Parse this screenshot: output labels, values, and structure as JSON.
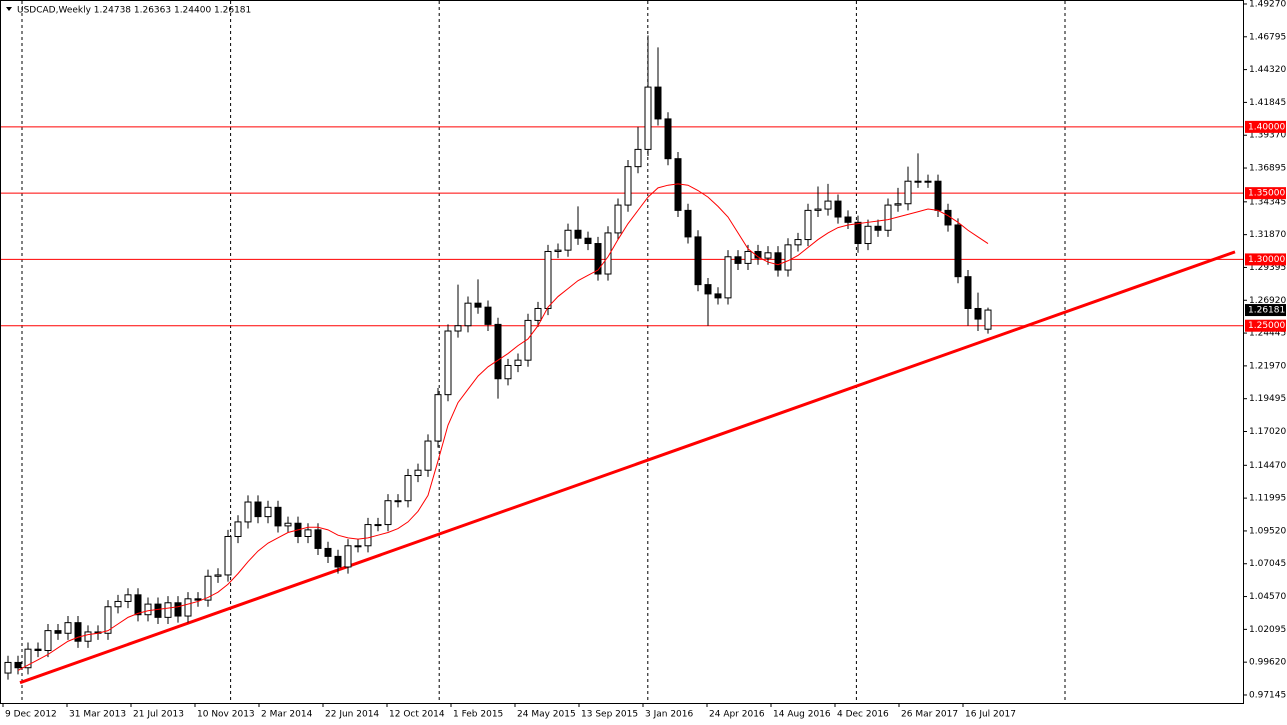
{
  "chart_data": {
    "type": "candlestick",
    "title": "USDCAD,Weekly  1.24738 1.26363 1.24400 1.26181",
    "up_color": "#ffffff",
    "down_color": "#000000",
    "outline_color": "#000000",
    "grid": false,
    "ylim": [
      0.9654,
      1.4957
    ],
    "yticks": [
      {
        "value": 1.4927,
        "label": "1.49270"
      },
      {
        "value": 1.46795,
        "label": "1.46795"
      },
      {
        "value": 1.4432,
        "label": "1.44320"
      },
      {
        "value": 1.41845,
        "label": "1.41845"
      },
      {
        "value": 1.3937,
        "label": "1.39370"
      },
      {
        "value": 1.36895,
        "label": "1.36895"
      },
      {
        "value": 1.34345,
        "label": "1.34345"
      },
      {
        "value": 1.3187,
        "label": "1.31870"
      },
      {
        "value": 1.29395,
        "label": "1.29395"
      },
      {
        "value": 1.2692,
        "label": "1.26920"
      },
      {
        "value": 1.24445,
        "label": "1.24445"
      },
      {
        "value": 1.2197,
        "label": "1.21970"
      },
      {
        "value": 1.19495,
        "label": "1.19495"
      },
      {
        "value": 1.1702,
        "label": "1.17020"
      },
      {
        "value": 1.1447,
        "label": "1.14470"
      },
      {
        "value": 1.11995,
        "label": "1.11995"
      },
      {
        "value": 1.0952,
        "label": "1.09520"
      },
      {
        "value": 1.07045,
        "label": "1.07045"
      },
      {
        "value": 1.0457,
        "label": "1.04570"
      },
      {
        "value": 1.02095,
        "label": "1.02095"
      },
      {
        "value": 0.9962,
        "label": "0.99620"
      },
      {
        "value": 0.97145,
        "label": "0.97145"
      }
    ],
    "x_labels": [
      "9 Dec 2012",
      "31 Mar 2013",
      "21 Jul 2013",
      "10 Nov 2013",
      "2 Mar 2014",
      "22 Jun 2014",
      "12 Oct 2014",
      "1 Feb 2015",
      "24 May 2015",
      "13 Sep 2015",
      "3 Jan 2016",
      "24 Apr 2016",
      "14 Aug 2016",
      "4 Dec 2016",
      "26 Mar 2017",
      "16 Jul 2017"
    ],
    "open": [
      0.988,
      0.996,
      0.992,
      1.006,
      1.005,
      1.02,
      1.018,
      1.026,
      1.012,
      1.019,
      1.018,
      1.038,
      1.042,
      1.047,
      1.032,
      1.04,
      1.03,
      1.041,
      1.031,
      1.044,
      1.043,
      1.061,
      1.062,
      1.091,
      1.102,
      1.117,
      1.106,
      1.113,
      1.099,
      1.101,
      1.091,
      1.096,
      1.082,
      1.076,
      1.068,
      1.084,
      1.084,
      1.1,
      1.1,
      1.118,
      1.118,
      1.137,
      1.141,
      1.163,
      1.198,
      1.246,
      1.25,
      1.267,
      1.264,
      1.251,
      1.21,
      1.22,
      1.224,
      1.254,
      1.263,
      1.306,
      1.307,
      1.322,
      1.316,
      1.312,
      1.289,
      1.32,
      1.341,
      1.37,
      1.383,
      1.43,
      1.406,
      1.376,
      1.337,
      1.317,
      1.281,
      1.274,
      1.271,
      1.302,
      1.297,
      1.306,
      1.301,
      1.305,
      1.292,
      1.311,
      1.315,
      1.337,
      1.338,
      1.344,
      1.332,
      1.328,
      1.312,
      1.325,
      1.322,
      1.341,
      1.342,
      1.359,
      1.359,
      1.359,
      1.337,
      1.326,
      1.287,
      1.263,
      1.24738
    ],
    "high": [
      1.001,
      1.001,
      1.011,
      1.011,
      1.025,
      1.025,
      1.031,
      1.031,
      1.024,
      1.024,
      1.043,
      1.047,
      1.052,
      1.052,
      1.045,
      1.045,
      1.046,
      1.046,
      1.049,
      1.049,
      1.066,
      1.067,
      1.096,
      1.107,
      1.122,
      1.122,
      1.118,
      1.118,
      1.106,
      1.106,
      1.101,
      1.101,
      1.087,
      1.081,
      1.089,
      1.089,
      1.105,
      1.105,
      1.123,
      1.123,
      1.142,
      1.146,
      1.168,
      1.203,
      1.251,
      1.281,
      1.272,
      1.285,
      1.269,
      1.256,
      1.225,
      1.229,
      1.259,
      1.268,
      1.311,
      1.312,
      1.327,
      1.34,
      1.321,
      1.317,
      1.325,
      1.346,
      1.375,
      1.4,
      1.469,
      1.46,
      1.411,
      1.381,
      1.342,
      1.322,
      1.286,
      1.279,
      1.307,
      1.307,
      1.311,
      1.311,
      1.31,
      1.31,
      1.316,
      1.32,
      1.342,
      1.355,
      1.357,
      1.349,
      1.337,
      1.333,
      1.33,
      1.33,
      1.346,
      1.354,
      1.37,
      1.38,
      1.364,
      1.364,
      1.342,
      1.331,
      1.292,
      1.275,
      1.26363
    ],
    "low": [
      0.983,
      0.987,
      0.987,
      1.0,
      1.0,
      1.013,
      1.013,
      1.007,
      1.007,
      1.013,
      1.013,
      1.033,
      1.037,
      1.027,
      1.027,
      1.025,
      1.025,
      1.026,
      1.026,
      1.038,
      1.038,
      1.056,
      1.057,
      1.086,
      1.097,
      1.101,
      1.101,
      1.094,
      1.094,
      1.086,
      1.086,
      1.077,
      1.071,
      1.063,
      1.063,
      1.079,
      1.079,
      1.095,
      1.095,
      1.113,
      1.113,
      1.132,
      1.136,
      1.158,
      1.193,
      1.241,
      1.245,
      1.259,
      1.246,
      1.195,
      1.205,
      1.215,
      1.219,
      1.249,
      1.258,
      1.301,
      1.302,
      1.311,
      1.307,
      1.284,
      1.284,
      1.315,
      1.336,
      1.365,
      1.378,
      1.401,
      1.371,
      1.332,
      1.312,
      1.276,
      1.25,
      1.266,
      1.266,
      1.292,
      1.292,
      1.296,
      1.296,
      1.287,
      1.287,
      1.306,
      1.31,
      1.332,
      1.333,
      1.327,
      1.323,
      1.305,
      1.307,
      1.317,
      1.317,
      1.336,
      1.337,
      1.354,
      1.354,
      1.332,
      1.321,
      1.282,
      1.25,
      1.246,
      1.244
    ],
    "close": [
      0.996,
      0.992,
      1.006,
      1.005,
      1.02,
      1.018,
      1.026,
      1.012,
      1.019,
      1.018,
      1.038,
      1.042,
      1.047,
      1.032,
      1.04,
      1.03,
      1.041,
      1.031,
      1.044,
      1.043,
      1.061,
      1.062,
      1.091,
      1.102,
      1.117,
      1.106,
      1.113,
      1.099,
      1.101,
      1.091,
      1.096,
      1.082,
      1.076,
      1.068,
      1.084,
      1.084,
      1.1,
      1.1,
      1.118,
      1.118,
      1.137,
      1.141,
      1.163,
      1.198,
      1.246,
      1.25,
      1.267,
      1.264,
      1.251,
      1.21,
      1.22,
      1.224,
      1.254,
      1.263,
      1.306,
      1.307,
      1.322,
      1.316,
      1.312,
      1.289,
      1.32,
      1.341,
      1.37,
      1.383,
      1.43,
      1.406,
      1.376,
      1.337,
      1.317,
      1.281,
      1.274,
      1.271,
      1.302,
      1.297,
      1.306,
      1.301,
      1.305,
      1.292,
      1.311,
      1.315,
      1.337,
      1.338,
      1.344,
      1.332,
      1.328,
      1.312,
      1.325,
      1.322,
      1.341,
      1.342,
      1.359,
      1.359,
      1.359,
      1.337,
      1.326,
      1.287,
      1.263,
      1.255,
      1.26181
    ],
    "moving_average": {
      "color": "#ff0000",
      "values": [
        null,
        0.99,
        0.994,
        0.998,
        1.002,
        1.007,
        1.012,
        1.015,
        1.017,
        1.018,
        1.02,
        1.025,
        1.03,
        1.033,
        1.035,
        1.036,
        1.037,
        1.038,
        1.04,
        1.042,
        1.045,
        1.049,
        1.055,
        1.063,
        1.072,
        1.08,
        1.086,
        1.09,
        1.094,
        1.096,
        1.098,
        1.098,
        1.096,
        1.092,
        1.09,
        1.089,
        1.09,
        1.092,
        1.094,
        1.097,
        1.102,
        1.11,
        1.122,
        1.148,
        1.175,
        1.192,
        1.202,
        1.212,
        1.219,
        1.224,
        1.229,
        1.235,
        1.24,
        1.25,
        1.264,
        1.272,
        1.278,
        1.284,
        1.288,
        1.292,
        1.302,
        1.315,
        1.327,
        1.337,
        1.347,
        1.354,
        1.356,
        1.357,
        1.356,
        1.352,
        1.347,
        1.34,
        1.332,
        1.32,
        1.308,
        1.302,
        1.298,
        1.296,
        1.299,
        1.303,
        1.309,
        1.315,
        1.32,
        1.324,
        1.326,
        1.327,
        1.328,
        1.329,
        1.33,
        1.332,
        1.334,
        1.336,
        1.338,
        1.337,
        1.333,
        1.328,
        1.322,
        1.317,
        1.312
      ]
    },
    "trendline": {
      "color": "#ff0000",
      "values": [
        0.9807,
        1.3057
      ]
    },
    "levels": {
      "color": "#ff0000",
      "items": [
        {
          "value": 1.4,
          "label": "1.40000"
        },
        {
          "value": 1.35,
          "label": "1.35000"
        },
        {
          "value": 1.3,
          "label": "1.30000"
        },
        {
          "value": 1.25,
          "label": "1.25000"
        }
      ]
    },
    "last_price": {
      "value": 1.26181,
      "label": "1.26181",
      "color": "#000000"
    }
  }
}
